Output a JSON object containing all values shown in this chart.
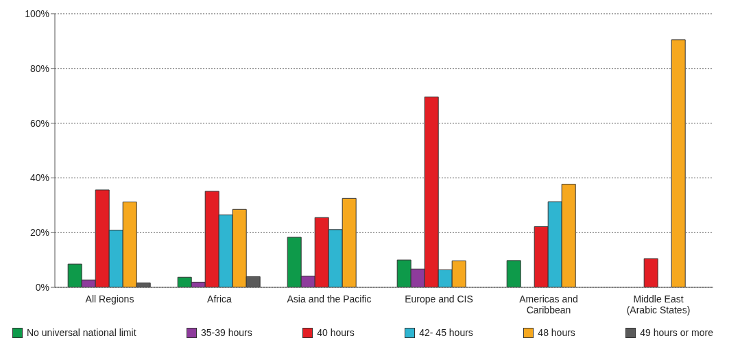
{
  "chart_data": {
    "type": "bar",
    "categories": [
      "All Regions",
      "Africa",
      "Asia and the Pacific",
      "Europe and CIS",
      "Americas and\nCaribbean",
      "Middle East\n(Arabic States)"
    ],
    "series": [
      {
        "name": "No universal national limit",
        "color": "#0e9a4a",
        "values": [
          8.5,
          3.7,
          18.3,
          10.0,
          9.8,
          0
        ]
      },
      {
        "name": "35-39 hours",
        "color": "#8e3b9c",
        "values": [
          2.7,
          1.9,
          4.1,
          6.7,
          0,
          0
        ]
      },
      {
        "name": "40 hours",
        "color": "#e31e24",
        "values": [
          35.6,
          35.1,
          25.5,
          69.6,
          22.2,
          10.5
        ]
      },
      {
        "name": "42- 45 hours",
        "color": "#2fb5d1",
        "values": [
          20.9,
          26.5,
          21.1,
          6.4,
          31.3,
          0
        ]
      },
      {
        "name": "48 hours",
        "color": "#f6a81f",
        "values": [
          31.2,
          28.5,
          32.5,
          9.7,
          37.7,
          90.5
        ]
      },
      {
        "name": "49 hours or more",
        "color": "#5a5a5a",
        "values": [
          1.6,
          3.9,
          0,
          0,
          0,
          0
        ]
      }
    ],
    "ylim": [
      0,
      100
    ],
    "yticks": [
      {
        "value": 0,
        "label": "0%"
      },
      {
        "value": 20,
        "label": "20%"
      },
      {
        "value": 40,
        "label": "40%"
      },
      {
        "value": 60,
        "label": "60%"
      },
      {
        "value": 80,
        "label": "80%"
      },
      {
        "value": 100,
        "label": "100%"
      }
    ],
    "grid": "y",
    "legend": "bottom"
  }
}
